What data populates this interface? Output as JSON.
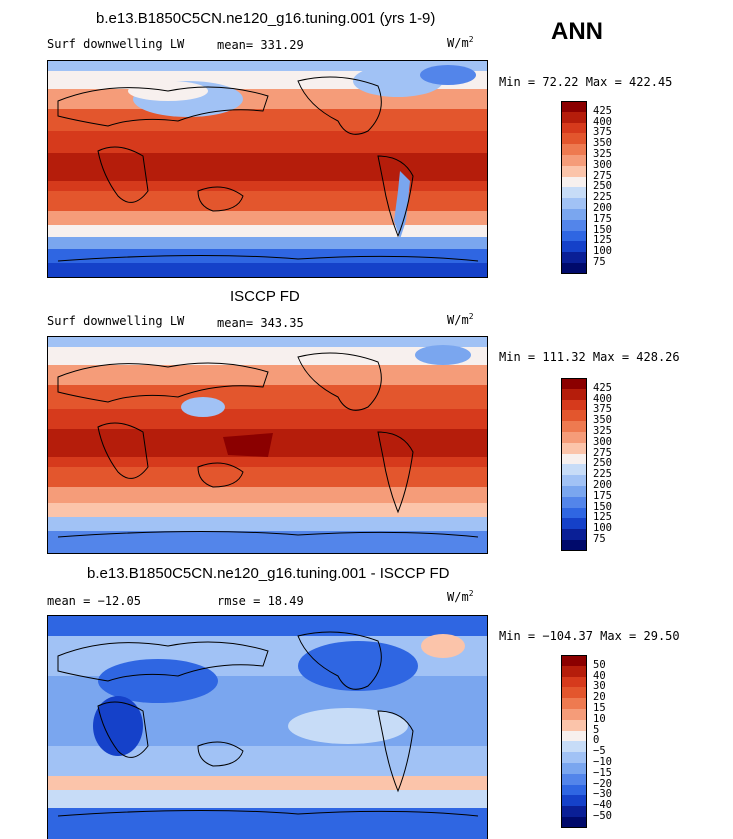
{
  "corner_label": "ANN",
  "panels": [
    {
      "title": "b.e13.B1850C5CN.ne120_g16.tuning.001 (yrs 1-9)",
      "left": "Surf downwelling LW",
      "center": "mean= 331.29",
      "units": "W/m",
      "units_sup": "2",
      "minmax": "Min =  72.22 Max = 422.45"
    },
    {
      "title": "ISCCP FD",
      "left": "Surf downwelling LW",
      "center": "mean= 343.35",
      "units": "W/m",
      "units_sup": "2",
      "minmax": "Min = 111.32 Max = 428.26"
    },
    {
      "title": "b.e13.B1850C5CN.ne120_g16.tuning.001 - ISCCP FD",
      "left": "mean = −12.05",
      "center": "rmse =   18.49",
      "units": "W/m",
      "units_sup": "2",
      "minmax": "Min = −104.37 Max =  29.50"
    }
  ],
  "chart_data": [
    {
      "type": "heatmap",
      "title": "b.e13.B1850C5CN.ne120_g16.tuning.001 (yrs 1-9)",
      "variable": "Surf downwelling LW",
      "units": "W/m2",
      "mean": 331.29,
      "min": 72.22,
      "max": 422.45,
      "colorbar_levels": [
        "425",
        "400",
        "375",
        "350",
        "325",
        "300",
        "275",
        "250",
        "225",
        "200",
        "175",
        "150",
        "125",
        "100",
        "75"
      ],
      "colorbar_colors": [
        "#8b0000",
        "#b51d0b",
        "#d63a1c",
        "#e3562d",
        "#ee7a50",
        "#f59c79",
        "#fbc4aa",
        "#f7f0ee",
        "#c7dcf7",
        "#a1c2f5",
        "#7aa6ef",
        "#5385ea",
        "#2f66e2",
        "#1541c9",
        "#0a1f96",
        "#000a6b"
      ]
    },
    {
      "type": "heatmap",
      "title": "ISCCP FD",
      "variable": "Surf downwelling LW",
      "units": "W/m2",
      "mean": 343.35,
      "min": 111.32,
      "max": 428.26,
      "colorbar_levels": [
        "425",
        "400",
        "375",
        "350",
        "325",
        "300",
        "275",
        "250",
        "225",
        "200",
        "175",
        "150",
        "125",
        "100",
        "75"
      ],
      "colorbar_colors": [
        "#8b0000",
        "#b51d0b",
        "#d63a1c",
        "#e3562d",
        "#ee7a50",
        "#f59c79",
        "#fbc4aa",
        "#f7f0ee",
        "#c7dcf7",
        "#a1c2f5",
        "#7aa6ef",
        "#5385ea",
        "#2f66e2",
        "#1541c9",
        "#0a1f96",
        "#000a6b"
      ]
    },
    {
      "type": "heatmap",
      "title": "b.e13.B1850C5CN.ne120_g16.tuning.001 - ISCCP FD",
      "units": "W/m2",
      "mean": -12.05,
      "rmse": 18.49,
      "min": -104.37,
      "max": 29.5,
      "colorbar_levels": [
        "50",
        "40",
        "30",
        "20",
        "15",
        "10",
        "5",
        "0",
        "−5",
        "−10",
        "−15",
        "−20",
        "−30",
        "−40",
        "−50"
      ],
      "colorbar_colors": [
        "#8b0000",
        "#b51d0b",
        "#d63a1c",
        "#e3562d",
        "#ee7a50",
        "#f59c79",
        "#fbc4aa",
        "#f7f0ee",
        "#c7dcf7",
        "#a1c2f5",
        "#7aa6ef",
        "#5385ea",
        "#2f66e2",
        "#1541c9",
        "#0a1f96",
        "#000a6b"
      ]
    }
  ]
}
